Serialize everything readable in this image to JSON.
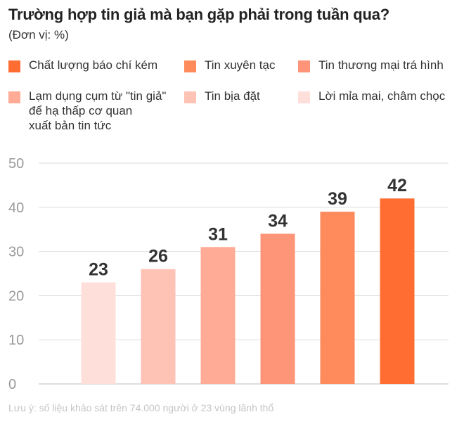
{
  "title": "Trường hợp tin giả mà bạn gặp phải trong tuần qua?",
  "subtitle": "(Đơn vị: %)",
  "note": "Lưu ý: số liệu khảo sát trên 74.000 người ở 23 vùng lãnh thổ",
  "legend": [
    {
      "label": "Chất lượng báo chí kém",
      "color": "#ff6d33"
    },
    {
      "label": "Tin xuyên tạc",
      "color": "#ff8a5c"
    },
    {
      "label": "Tin thương mại trá hình",
      "color": "#fe9478"
    },
    {
      "label": "Lạm dụng cụm từ \"tin giả\"\nđể  hạ thấp cơ quan\nxuất bản tin tức",
      "color": "#ffab96"
    },
    {
      "label": "Tin bịa đặt",
      "color": "#ffc3b5"
    },
    {
      "label": "Lời mỉa mai, châm chọc",
      "color": "#ffdfda"
    }
  ],
  "chart_data": {
    "type": "bar",
    "title": "Trường hợp tin giả mà bạn gặp phải trong tuần qua?",
    "ylabel": "%",
    "xlabel": "",
    "ylim": [
      0,
      50
    ],
    "yticks": [
      "0",
      "10",
      "20",
      "30",
      "40",
      "50"
    ],
    "grid": true,
    "categories": [
      "Lời mỉa mai, châm chọc",
      "Tin bịa đặt",
      "Lạm dụng cụm từ \"tin giả\" để hạ thấp cơ quan xuất bản tin tức",
      "Tin thương mại trá hình",
      "Tin xuyên tạc",
      "Chất lượng báo chí kém"
    ],
    "values": [
      23,
      26,
      31,
      34,
      39,
      42
    ],
    "value_labels": [
      "23",
      "26",
      "31",
      "34",
      "39",
      "42"
    ],
    "colors": [
      "#ffdfda",
      "#ffc3b5",
      "#ffab96",
      "#fe9478",
      "#ff8a5c",
      "#ff6d33"
    ]
  }
}
